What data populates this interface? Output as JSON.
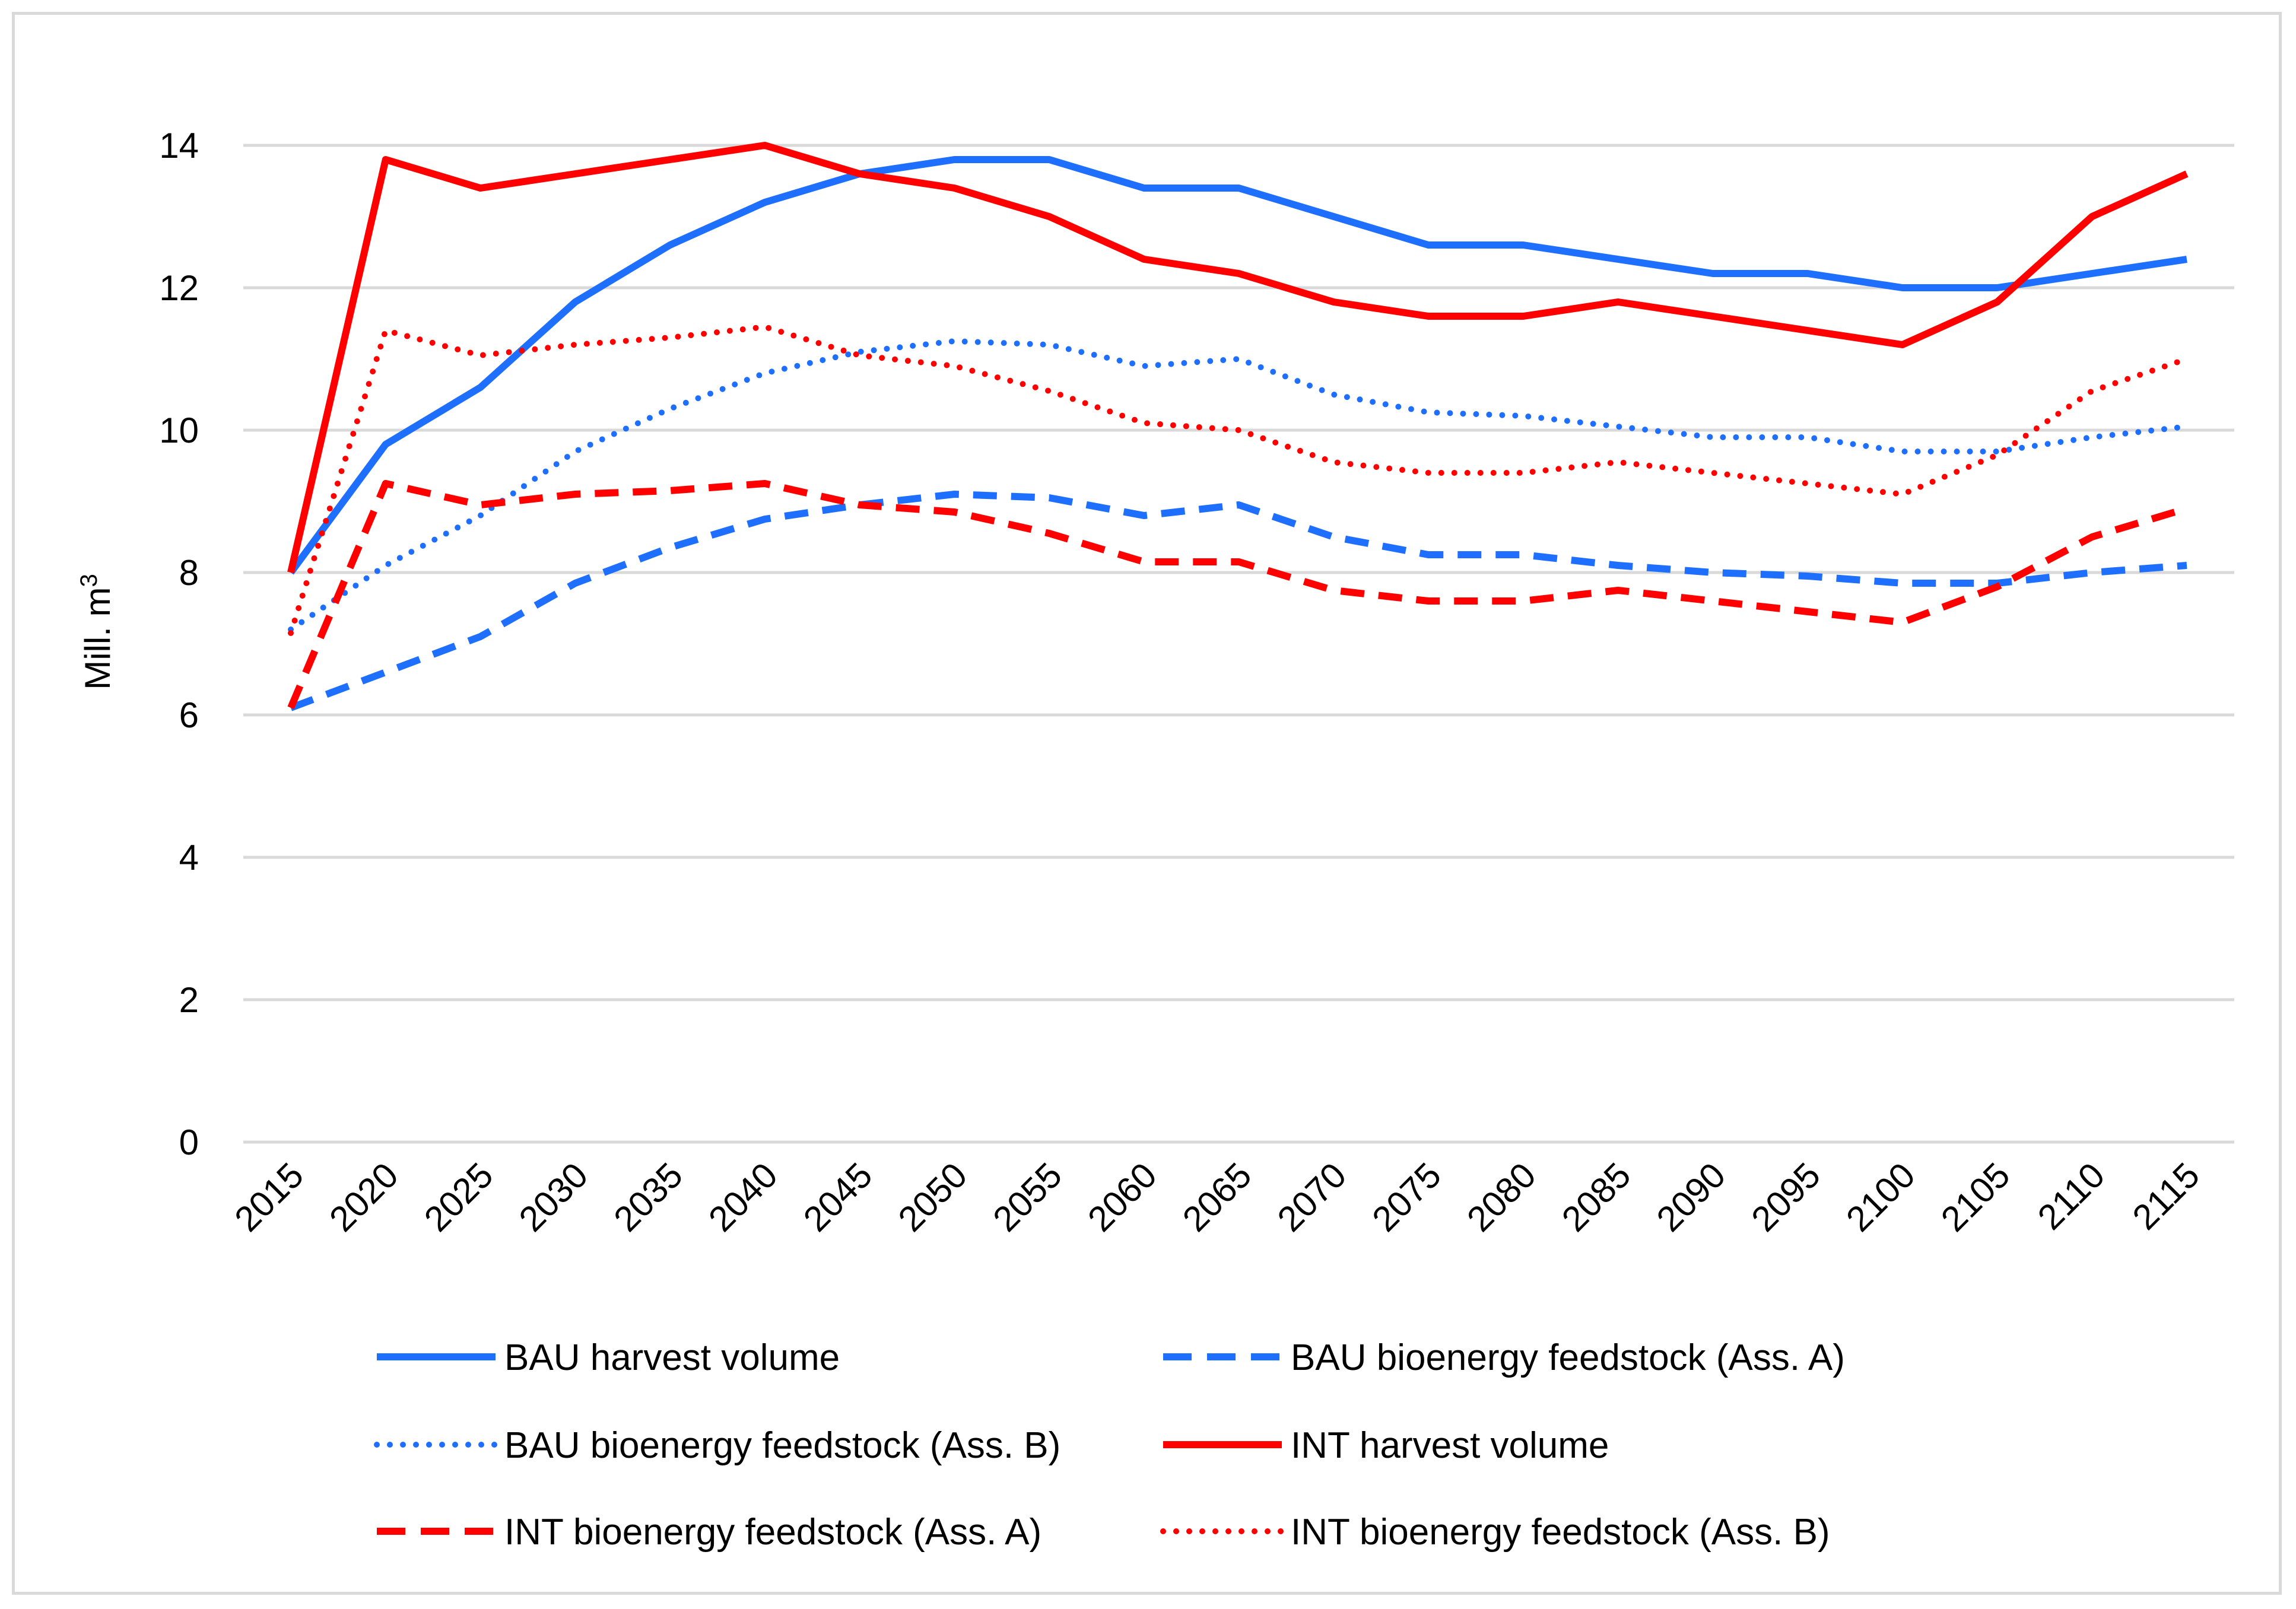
{
  "chart_data": {
    "type": "line",
    "title": "",
    "xlabel": "",
    "ylabel": "Mill. m",
    "ylabel_superscript": "3",
    "ylim": [
      0,
      14
    ],
    "yticks": [
      0,
      2,
      4,
      6,
      8,
      10,
      12,
      14
    ],
    "grid": true,
    "legend_position": "bottom",
    "categories": [
      "2015",
      "2020",
      "2025",
      "2030",
      "2035",
      "2040",
      "2045",
      "2050",
      "2055",
      "2060",
      "2065",
      "2070",
      "2075",
      "2080",
      "2085",
      "2090",
      "2095",
      "2100",
      "2105",
      "2110",
      "2115"
    ],
    "series": [
      {
        "name": "BAU harvest volume",
        "color": "#1f6fff",
        "style": "solid",
        "values": [
          8.0,
          9.8,
          10.6,
          11.8,
          12.6,
          13.2,
          13.6,
          13.8,
          13.8,
          13.4,
          13.4,
          13.0,
          12.6,
          12.6,
          12.4,
          12.2,
          12.2,
          12.0,
          12.0,
          12.2,
          12.4
        ]
      },
      {
        "name": "BAU bioenergy feedstock (Ass. A)",
        "color": "#1f6fff",
        "style": "dashed",
        "values": [
          6.1,
          6.6,
          7.1,
          7.85,
          8.35,
          8.75,
          8.95,
          9.1,
          9.05,
          8.8,
          8.95,
          8.5,
          8.25,
          8.25,
          8.1,
          8.0,
          7.95,
          7.85,
          7.85,
          8.0,
          8.1
        ]
      },
      {
        "name": "BAU bioenergy feedstock (Ass. B)",
        "color": "#1f6fff",
        "style": "dotted",
        "values": [
          7.2,
          8.1,
          8.8,
          9.7,
          10.3,
          10.8,
          11.1,
          11.25,
          11.2,
          10.9,
          11.0,
          10.5,
          10.25,
          10.2,
          10.05,
          9.9,
          9.9,
          9.7,
          9.7,
          9.9,
          10.05
        ]
      },
      {
        "name": "INT harvest volume",
        "color": "#ff0000",
        "style": "solid",
        "values": [
          8.0,
          13.8,
          13.4,
          13.6,
          13.8,
          14.0,
          13.6,
          13.4,
          13.0,
          12.4,
          12.2,
          11.8,
          11.6,
          11.6,
          11.8,
          11.6,
          11.4,
          11.2,
          11.8,
          13.0,
          13.6
        ]
      },
      {
        "name": "INT bioenergy feedstock (Ass. A)",
        "color": "#ff0000",
        "style": "dashed",
        "values": [
          6.1,
          9.25,
          8.95,
          9.1,
          9.15,
          9.25,
          8.95,
          8.85,
          8.55,
          8.15,
          8.15,
          7.75,
          7.6,
          7.6,
          7.75,
          7.6,
          7.45,
          7.3,
          7.8,
          8.5,
          8.9
        ]
      },
      {
        "name": "INT bioenergy feedstock (Ass. B)",
        "color": "#ff0000",
        "style": "dotted",
        "values": [
          7.15,
          11.4,
          11.05,
          11.2,
          11.3,
          11.45,
          11.05,
          10.9,
          10.55,
          10.1,
          10.0,
          9.55,
          9.4,
          9.4,
          9.55,
          9.4,
          9.25,
          9.1,
          9.65,
          10.55,
          11.0
        ]
      }
    ]
  }
}
